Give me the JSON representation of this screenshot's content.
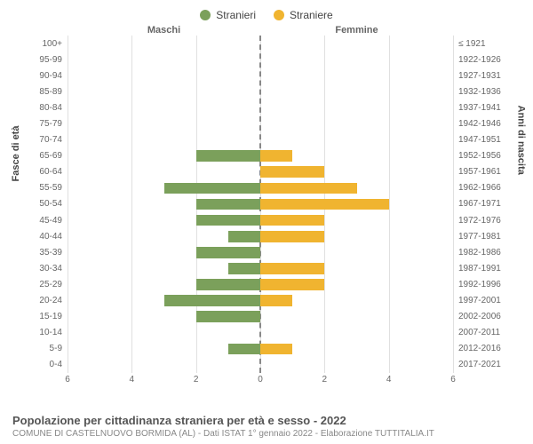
{
  "legend": {
    "male": {
      "label": "Stranieri",
      "color": "#7ba05b"
    },
    "female": {
      "label": "Straniere",
      "color": "#f0b430"
    }
  },
  "column_headers": {
    "male": "Maschi",
    "female": "Femmine"
  },
  "y_axis_left_title": "Fasce di età",
  "y_axis_right_title": "Anni di nascita",
  "chart": {
    "type": "population-pyramid",
    "xlim": 6,
    "xticks": [
      6,
      4,
      2,
      0,
      2,
      4,
      6
    ],
    "grid_color": "#e0e0e0",
    "background_color": "#ffffff",
    "age_bands": [
      {
        "age": "100+",
        "birth": "≤ 1921",
        "male": 0,
        "female": 0
      },
      {
        "age": "95-99",
        "birth": "1922-1926",
        "male": 0,
        "female": 0
      },
      {
        "age": "90-94",
        "birth": "1927-1931",
        "male": 0,
        "female": 0
      },
      {
        "age": "85-89",
        "birth": "1932-1936",
        "male": 0,
        "female": 0
      },
      {
        "age": "80-84",
        "birth": "1937-1941",
        "male": 0,
        "female": 0
      },
      {
        "age": "75-79",
        "birth": "1942-1946",
        "male": 0,
        "female": 0
      },
      {
        "age": "70-74",
        "birth": "1947-1951",
        "male": 0,
        "female": 0
      },
      {
        "age": "65-69",
        "birth": "1952-1956",
        "male": 2,
        "female": 1
      },
      {
        "age": "60-64",
        "birth": "1957-1961",
        "male": 0,
        "female": 2
      },
      {
        "age": "55-59",
        "birth": "1962-1966",
        "male": 3,
        "female": 3
      },
      {
        "age": "50-54",
        "birth": "1967-1971",
        "male": 2,
        "female": 4
      },
      {
        "age": "45-49",
        "birth": "1972-1976",
        "male": 2,
        "female": 2
      },
      {
        "age": "40-44",
        "birth": "1977-1981",
        "male": 1,
        "female": 2
      },
      {
        "age": "35-39",
        "birth": "1982-1986",
        "male": 2,
        "female": 0
      },
      {
        "age": "30-34",
        "birth": "1987-1991",
        "male": 1,
        "female": 2
      },
      {
        "age": "25-29",
        "birth": "1992-1996",
        "male": 2,
        "female": 2
      },
      {
        "age": "20-24",
        "birth": "1997-2001",
        "male": 3,
        "female": 1
      },
      {
        "age": "15-19",
        "birth": "2002-2006",
        "male": 2,
        "female": 0
      },
      {
        "age": "10-14",
        "birth": "2007-2011",
        "male": 0,
        "female": 0
      },
      {
        "age": "5-9",
        "birth": "2012-2016",
        "male": 1,
        "female": 1
      },
      {
        "age": "0-4",
        "birth": "2017-2021",
        "male": 0,
        "female": 0
      }
    ]
  },
  "footer": {
    "title": "Popolazione per cittadinanza straniera per età e sesso - 2022",
    "subtitle": "COMUNE DI CASTELNUOVO BORMIDA (AL) - Dati ISTAT 1° gennaio 2022 - Elaborazione TUTTITALIA.IT"
  }
}
